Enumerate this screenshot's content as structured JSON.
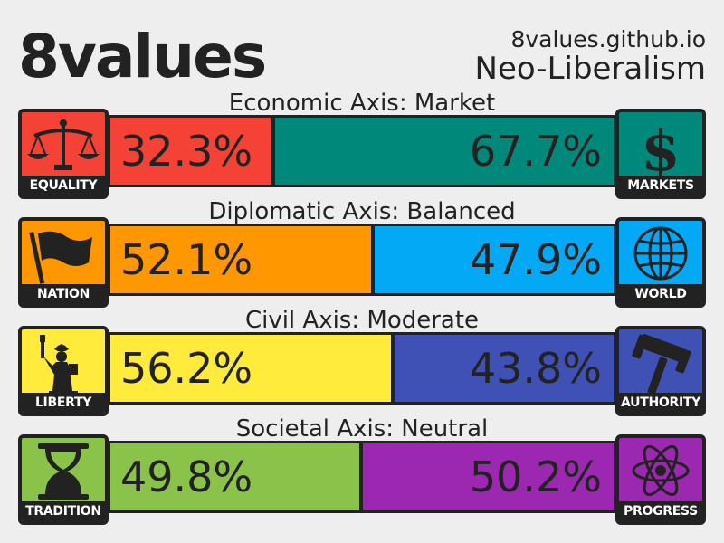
{
  "header": {
    "logo": "8values",
    "site": "8values.github.io",
    "ideology": "Neo-Liberalism"
  },
  "axes": [
    {
      "label": "Economic Axis: Market",
      "left": {
        "name": "EQUALITY",
        "percent": 32.3,
        "percent_text": "32.3%",
        "color": "#f44336",
        "icon": "scales-icon"
      },
      "right": {
        "name": "MARKETS",
        "percent": 67.7,
        "percent_text": "67.7%",
        "color": "#00897b",
        "icon": "dollar-icon"
      }
    },
    {
      "label": "Diplomatic Axis: Balanced",
      "left": {
        "name": "NATION",
        "percent": 52.1,
        "percent_text": "52.1%",
        "color": "#ff9800",
        "icon": "flag-icon"
      },
      "right": {
        "name": "WORLD",
        "percent": 47.9,
        "percent_text": "47.9%",
        "color": "#03a9f4",
        "icon": "globe-icon"
      }
    },
    {
      "label": "Civil Axis: Moderate",
      "left": {
        "name": "LIBERTY",
        "percent": 56.2,
        "percent_text": "56.2%",
        "color": "#ffeb3b",
        "icon": "statue-of-liberty-icon"
      },
      "right": {
        "name": "AUTHORITY",
        "percent": 43.8,
        "percent_text": "43.8%",
        "color": "#3f51b5",
        "icon": "gavel-icon"
      }
    },
    {
      "label": "Societal Axis: Neutral",
      "left": {
        "name": "TRADITION",
        "percent": 49.8,
        "percent_text": "49.8%",
        "color": "#8bc34a",
        "icon": "hourglass-icon"
      },
      "right": {
        "name": "PROGRESS",
        "percent": 50.2,
        "percent_text": "50.2%",
        "color": "#9c27b0",
        "icon": "atom-icon"
      }
    }
  ]
}
